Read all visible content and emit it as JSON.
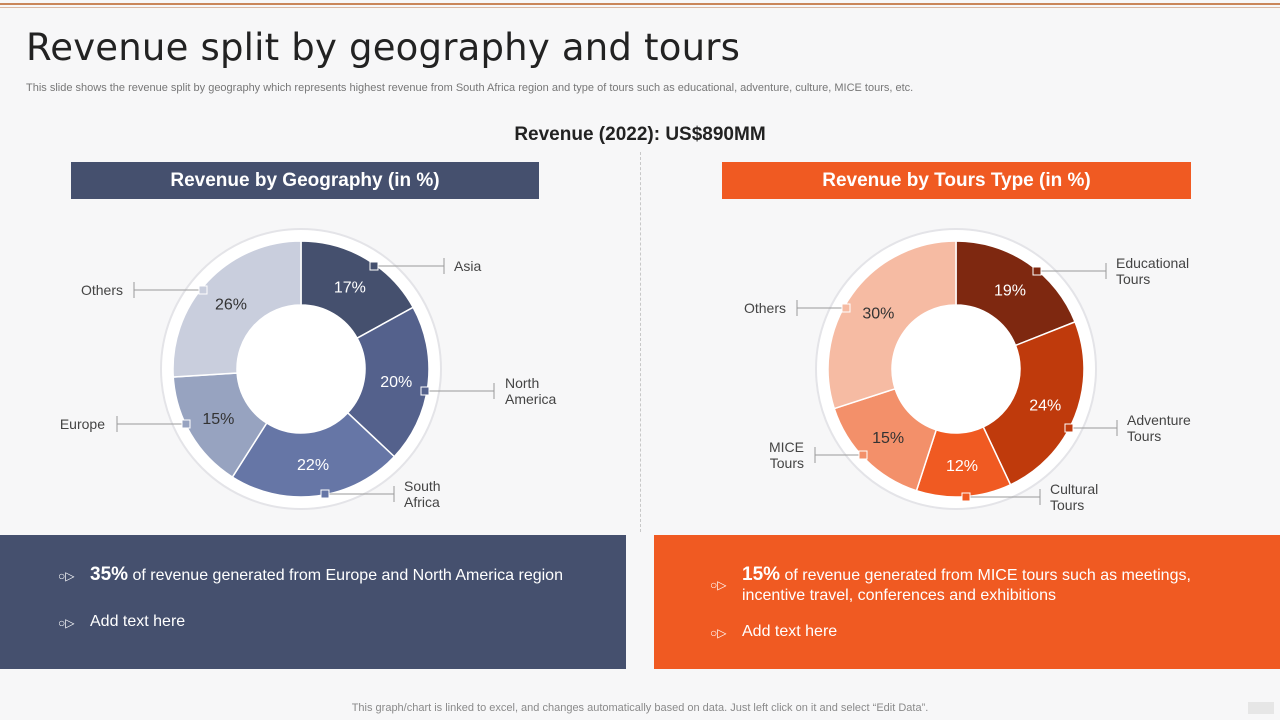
{
  "title": "Revenue split by geography and tours",
  "subtitle": "This slide shows the revenue split by geography which represents highest revenue from South Africa region and type of tours such as educational, adventure, culture, MICE tours, etc.",
  "revenue_label": "Revenue (2022): US$890MM",
  "footer": "This graph/chart is linked to excel, and changes automatically based on data. Just left click on it and select “Edit Data”.",
  "colors": {
    "navy": "#45506e",
    "orange": "#f05a22"
  },
  "geo_panel": {
    "b1_big": "35%",
    "b1_text": "of revenue generated from Europe and North America region",
    "b2_text": "Add text here"
  },
  "tour_panel": {
    "b1_big": "15%",
    "b1_line1": "of revenue generated from MICE tours such as meetings,",
    "b1_line2": "incentive travel, conferences and exhibitions",
    "b2_text": "Add text here"
  },
  "chart_data": [
    {
      "type": "pie",
      "title": "Revenue by Geography (in %)",
      "categories": [
        "Asia",
        "North America",
        "South Africa",
        "Europe",
        "Others"
      ],
      "label_lines": [
        [
          "Asia"
        ],
        [
          "North",
          "America"
        ],
        [
          "South",
          "Africa"
        ],
        [
          "Europe"
        ],
        [
          "Others"
        ]
      ],
      "values": [
        17,
        20,
        22,
        15,
        26
      ],
      "value_labels": [
        "17%",
        "20%",
        "22%",
        "15%",
        "26%"
      ],
      "colors": [
        "#45506e",
        "#54618c",
        "#6676a6",
        "#97a3c0",
        "#c9cedd"
      ],
      "text_colors": [
        "#ffffff",
        "#ffffff",
        "#ffffff",
        "#333333",
        "#333333"
      ]
    },
    {
      "type": "pie",
      "title": "Revenue by Tours Type (in %)",
      "categories": [
        "Educational Tours",
        "Adventure Tours",
        "Cultural Tours",
        "MICE Tours",
        "Others"
      ],
      "label_lines": [
        [
          "Educational",
          "Tours"
        ],
        [
          "Adventure",
          "Tours"
        ],
        [
          "Cultural",
          "Tours"
        ],
        [
          "MICE",
          "Tours"
        ],
        [
          "Others"
        ]
      ],
      "values": [
        19,
        24,
        12,
        15,
        30
      ],
      "value_labels": [
        "19%",
        "24%",
        "12%",
        "15%",
        "30%"
      ],
      "colors": [
        "#7e2810",
        "#bf3a0c",
        "#f05a22",
        "#f3906a",
        "#f6bba3"
      ],
      "text_colors": [
        "#ffffff",
        "#ffffff",
        "#ffffff",
        "#333333",
        "#333333"
      ]
    }
  ]
}
